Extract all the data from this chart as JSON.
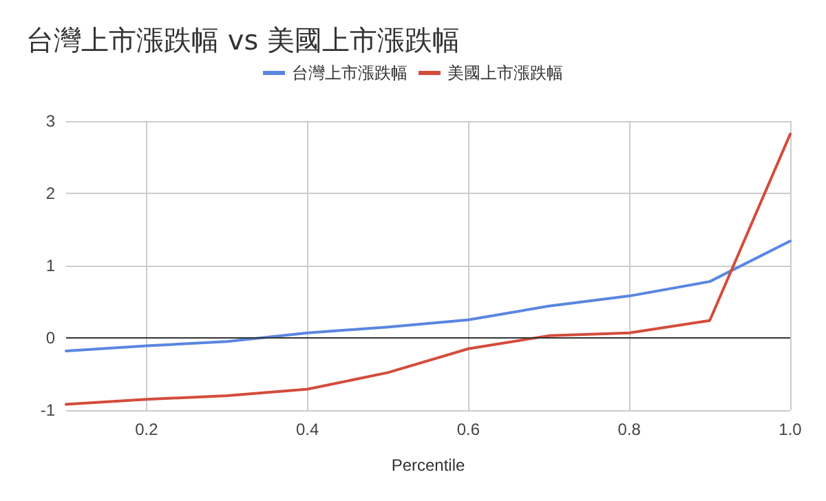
{
  "chart_data": {
    "type": "line",
    "title": "台灣上市漲跌幅 vs 美國上市漲跌幅",
    "xlabel": "Percentile",
    "x": [
      0.1,
      0.2,
      0.3,
      0.4,
      0.5,
      0.6,
      0.7,
      0.8,
      0.9,
      1.0
    ],
    "series": [
      {
        "name": "台灣上市漲跌幅",
        "color": "#5a86e0",
        "values": [
          -0.18,
          -0.11,
          -0.05,
          0.07,
          0.15,
          0.25,
          0.44,
          0.58,
          0.78,
          1.34
        ]
      },
      {
        "name": "美國上市漲跌幅",
        "color": "#d34c3c",
        "values": [
          -0.92,
          -0.85,
          -0.8,
          -0.71,
          -0.48,
          -0.15,
          0.03,
          0.07,
          0.24,
          2.82
        ]
      }
    ],
    "xlim": [
      0.1,
      1.0
    ],
    "xticks": [
      0.2,
      0.4,
      0.6,
      0.8,
      {
        "value": 1,
        "label": "1.0"
      }
    ],
    "ylim": [
      -1,
      3
    ],
    "yticks": [
      -1,
      0,
      1,
      2,
      3
    ],
    "ref_lines": [
      {
        "axis": "y",
        "value": 0,
        "color": "#333333"
      }
    ],
    "grid": true,
    "legend": "top",
    "marker": "none",
    "line_style": "solid"
  }
}
